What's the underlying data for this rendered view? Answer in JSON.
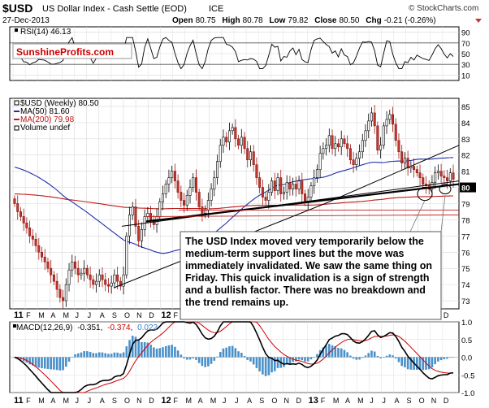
{
  "header": {
    "symbol": "$USD",
    "name": "US Dollar Index - Cash Settle (EOD)",
    "exchange": "ICE",
    "date": "27-Dec-2013",
    "open_label": "Open",
    "open": "80.75",
    "high_label": "High",
    "high": "80.78",
    "low_label": "Low",
    "low": "79.82",
    "close_label": "Close",
    "close": "80.50",
    "chg_label": "Chg",
    "chg": "-0.21 (-0.26%)",
    "copyright": "© StockCharts.com"
  },
  "watermark": "SunshineProfits.com",
  "rsi_panel": {
    "label": "RSI(14) 46.13",
    "ticks": [
      "90",
      "70",
      "50",
      "30",
      "10"
    ]
  },
  "price_panel": {
    "legend": [
      {
        "text": "$USD (Weekly) 80.50",
        "color": "#000000"
      },
      {
        "text": "MA(50) 81.60",
        "color": "#1f2fa8"
      },
      {
        "text": "MA(200) 79.98",
        "color": "#c01818"
      },
      {
        "text": "Volume undef",
        "color": "#000000"
      }
    ],
    "ticks": [
      "85",
      "84",
      "83",
      "82",
      "81",
      "80",
      "79",
      "78",
      "77",
      "76",
      "75",
      "74",
      "73"
    ],
    "highlight_tick": "80"
  },
  "annotation": "The USD Index moved very temporarily below the medium-term support lines but the move was immediately invalidated. We saw the same thing on Friday. This quick invalidation is a sign of strength and a bullish factor. There was no breakdown and the trend remains up.",
  "x_axis": {
    "labels": [
      "11",
      "F",
      "M",
      "A",
      "M",
      "J",
      "J",
      "A",
      "S",
      "O",
      "N",
      "D",
      "12",
      "F",
      "M",
      "A",
      "M",
      "J",
      "J",
      "A",
      "S",
      "O",
      "N",
      "D",
      "13",
      "F",
      "M",
      "A",
      "M",
      "J",
      "J",
      "A",
      "S",
      "O",
      "N",
      "D"
    ]
  },
  "macd_panel": {
    "label_prefix": "MACD(12,26,9)",
    "macd": "-0.351",
    "signal": "-0.374",
    "hist": "0.022",
    "ticks": [
      "1.0",
      "0.5",
      "0.0",
      "-0.5",
      "-1.0"
    ]
  },
  "chart_data": {
    "type": "candlestick",
    "title": "$USD US Dollar Index - Cash Settle (EOD) ICE",
    "period": "weekly",
    "x_range": [
      "2011-01",
      "2013-12"
    ],
    "ylim": [
      72.5,
      85.5
    ],
    "close_weekly_approx": [
      79.0,
      78.5,
      78.2,
      77.8,
      77.5,
      77.0,
      76.8,
      76.4,
      76.0,
      75.7,
      75.4,
      75.0,
      74.6,
      74.2,
      73.7,
      73.2,
      73.0,
      74.0,
      74.9,
      75.4,
      75.0,
      74.6,
      74.7,
      75.0,
      74.6,
      74.3,
      74.0,
      74.2,
      74.6,
      74.3,
      74.0,
      73.9,
      74.1,
      74.6,
      74.2,
      73.9,
      74.6,
      77.0,
      78.3,
      78.8,
      77.6,
      76.7,
      77.4,
      78.2,
      78.4,
      78.0,
      77.7,
      78.2,
      79.1,
      79.6,
      80.2,
      80.6,
      81.0,
      80.4,
      79.7,
      79.2,
      78.9,
      79.5,
      80.0,
      80.6,
      79.7,
      78.8,
      78.4,
      78.6,
      79.2,
      79.9,
      80.6,
      81.6,
      82.6,
      83.1,
      82.8,
      83.5,
      83.7,
      83.0,
      82.6,
      83.1,
      82.4,
      81.7,
      82.2,
      81.4,
      80.6,
      80.0,
      79.4,
      79.2,
      79.7,
      80.4,
      79.8,
      80.6,
      79.6,
      79.7,
      80.3,
      79.9,
      80.2,
      79.9,
      80.4,
      79.6,
      79.1,
      79.4,
      80.1,
      80.6,
      81.1,
      82.1,
      82.4,
      82.6,
      83.2,
      82.4,
      82.7,
      82.5,
      83.0,
      82.7,
      82.4,
      81.7,
      81.4,
      81.8,
      82.2,
      82.9,
      83.5,
      84.1,
      84.6,
      83.8,
      82.3,
      82.6,
      83.8,
      84.2,
      84.5,
      83.9,
      82.9,
      82.2,
      81.5,
      81.8,
      81.2,
      81.3,
      81.1,
      80.9,
      80.6,
      80.2,
      80.1,
      79.9,
      80.3,
      80.9,
      81.0,
      80.7,
      80.6,
      80.4,
      80.9,
      80.5
    ],
    "series": [
      {
        "name": "$USD (Weekly)",
        "last": 80.5
      },
      {
        "name": "MA(50)",
        "last": 81.6
      },
      {
        "name": "MA(200)",
        "last": 79.98
      }
    ],
    "rsi": {
      "name": "RSI(14)",
      "last": 46.13,
      "ylim": [
        0,
        100
      ],
      "levels": [
        70,
        50,
        30
      ]
    },
    "macd": {
      "name": "MACD(12,26,9)",
      "macd": -0.351,
      "signal": -0.374,
      "histogram": 0.022,
      "ylim": [
        -1.0,
        1.0
      ]
    },
    "colors": {
      "up_candle": "#ffffff",
      "down_candle": "#c0392b",
      "ma50": "#1f2fa8",
      "ma200": "#c01818",
      "annotation_border": "#555555"
    }
  }
}
